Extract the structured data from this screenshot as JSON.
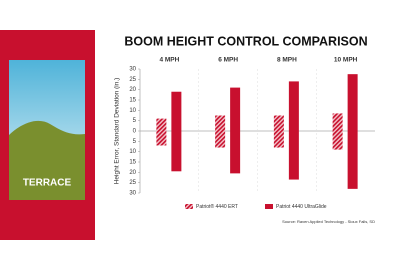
{
  "panel": {
    "label": "TERRACE"
  },
  "chart_data": {
    "type": "floating-bar",
    "title": "BOOM HEIGHT CONTROL COMPARISON",
    "y_label": "Height Error, Standard Deviation (in.)",
    "categories": [
      "4 MPH",
      "6 MPH",
      "8 MPH",
      "10 MPH"
    ],
    "series": [
      {
        "name": "Patriot® 4440 ERT",
        "color": "#c8102e",
        "hatched": true,
        "low": [
          -7,
          -8,
          -8,
          -9
        ],
        "high": [
          6,
          7.5,
          7.5,
          8.5
        ]
      },
      {
        "name": "Patriot 4440 UltraGlide",
        "color": "#c8102e",
        "hatched": false,
        "low": [
          -19.5,
          -20.5,
          -23.5,
          -28
        ],
        "high": [
          19,
          21,
          24,
          27.5
        ]
      }
    ],
    "ylim": [
      -30,
      30
    ],
    "yticks": [
      {
        "value": -30,
        "label": "30"
      },
      {
        "value": -25,
        "label": "25"
      },
      {
        "value": -20,
        "label": "20"
      },
      {
        "value": -15,
        "label": "15"
      },
      {
        "value": -10,
        "label": "10"
      },
      {
        "value": -5,
        "label": "5"
      },
      0,
      5,
      10,
      15,
      20,
      25,
      30
    ],
    "legend": "bottom",
    "source": "Source: Raven Applied Technology - Sioux Falls, SD"
  }
}
